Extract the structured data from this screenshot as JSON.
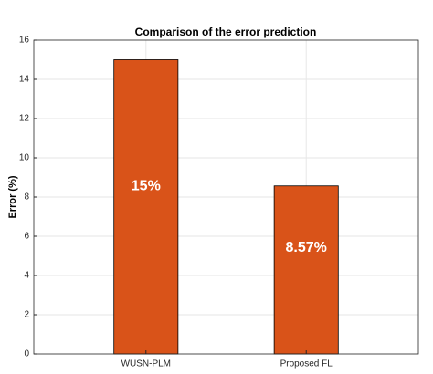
{
  "chart_data": {
    "type": "bar",
    "title": "Comparison of the error prediction",
    "y_label": "Error (%)",
    "categories": [
      "WUSN-PLM",
      "Proposed FL"
    ],
    "values": [
      15,
      8.57
    ],
    "value_labels": [
      "15%",
      "8.57%"
    ],
    "color": "#d95319",
    "ylim": [
      0,
      16
    ],
    "yticks": [
      0,
      2,
      4,
      6,
      8,
      10,
      12,
      14,
      16
    ],
    "grid": true
  }
}
